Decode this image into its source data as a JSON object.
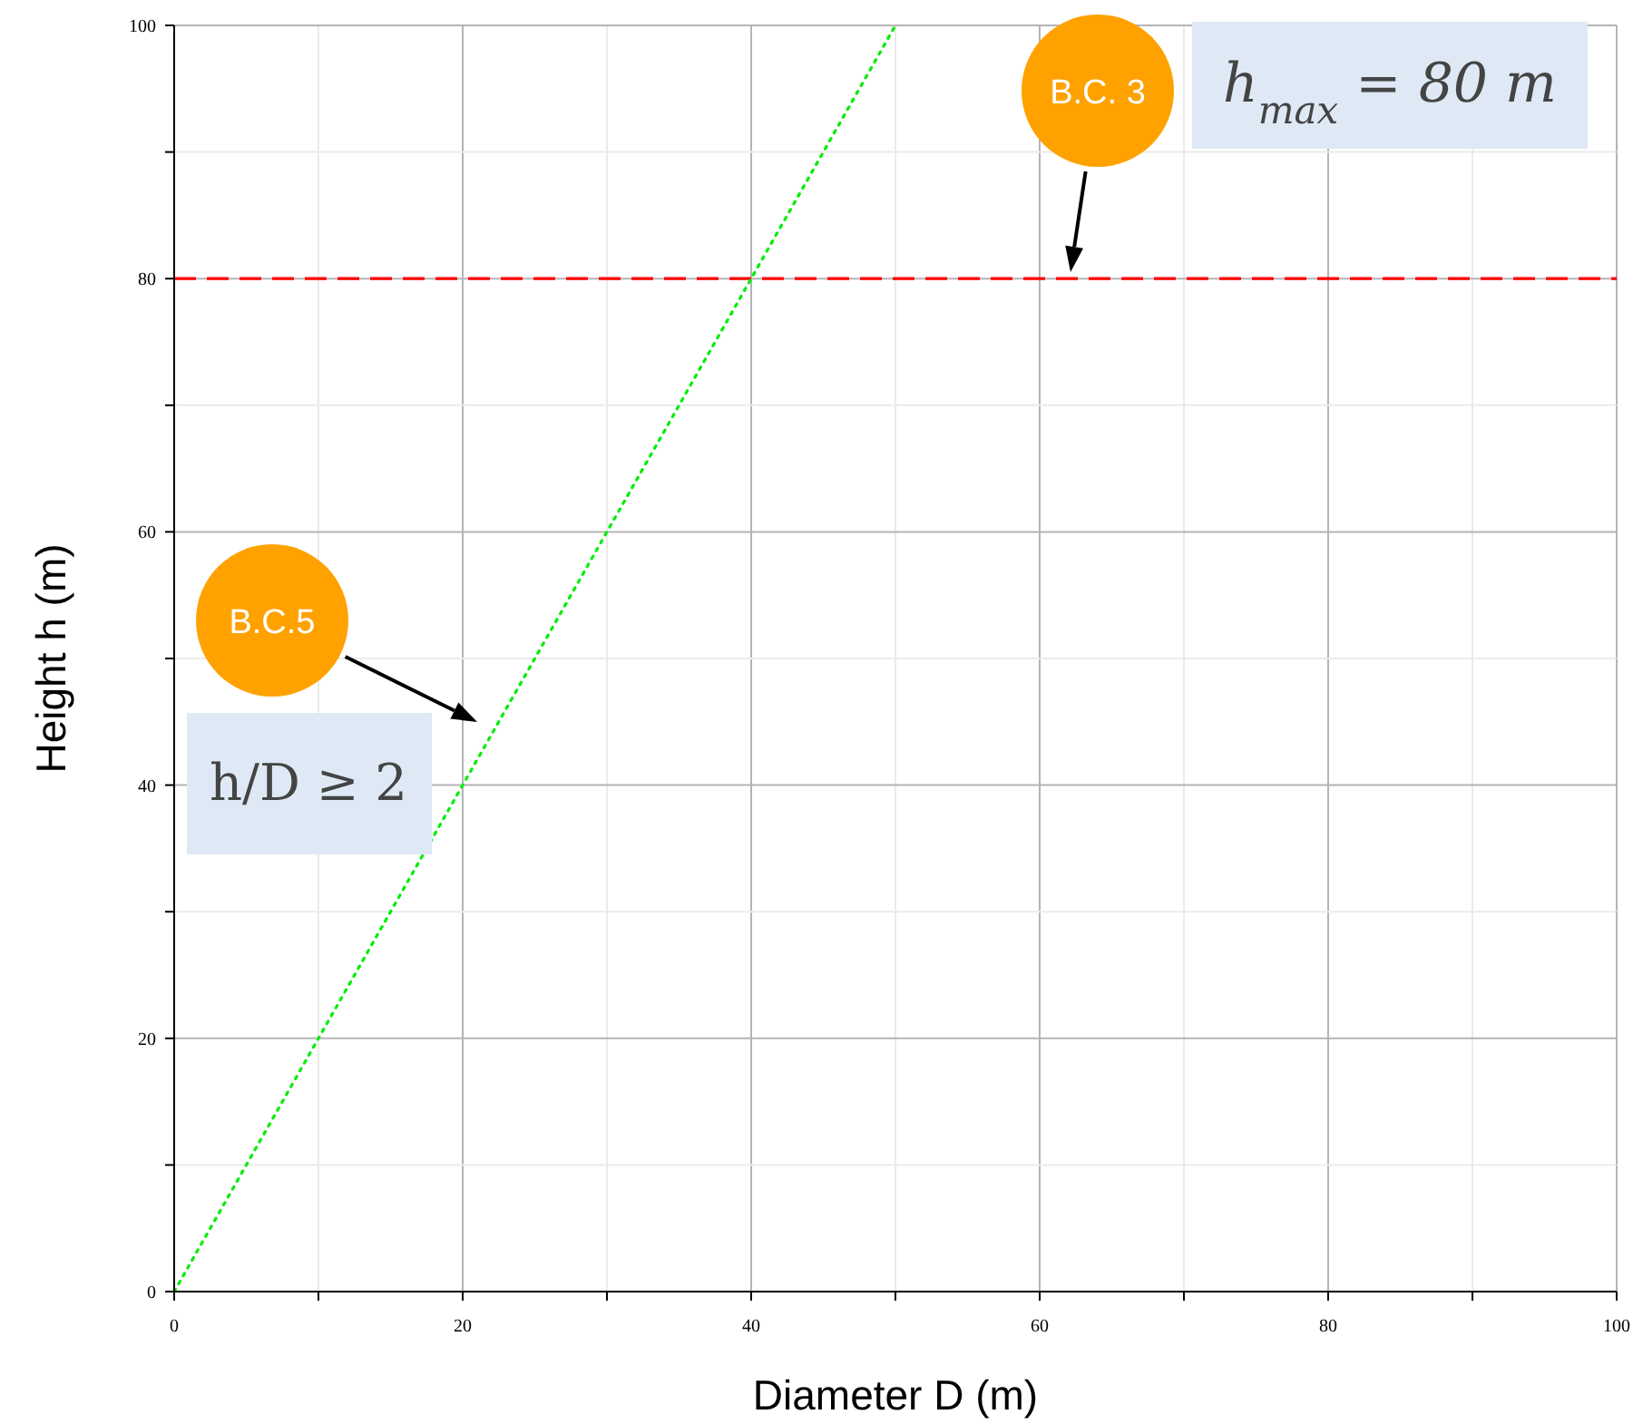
{
  "chart_data": {
    "type": "line",
    "xlabel": "Diameter D (m)",
    "ylabel": "Height h (m)",
    "x": [
      0,
      50
    ],
    "values": [
      0,
      100
    ],
    "color": "#00ee00",
    "line_style": "dotted",
    "xlim": [
      0,
      100
    ],
    "ylim": [
      0,
      100
    ],
    "xticks": [
      0,
      {
        "value": 10,
        "label": null
      },
      20,
      {
        "value": 30,
        "label": null
      },
      40,
      {
        "value": 50,
        "label": null
      },
      60,
      {
        "value": 70,
        "label": null
      },
      80,
      {
        "value": 90,
        "label": null
      },
      100
    ],
    "yticks": [
      0,
      {
        "value": 10,
        "label": null
      },
      20,
      {
        "value": 30,
        "label": null
      },
      40,
      {
        "value": 50,
        "label": null
      },
      60,
      {
        "value": 70,
        "label": null
      },
      80,
      {
        "value": 90,
        "label": null
      },
      100
    ],
    "grid": true,
    "ref_lines": [
      {
        "axis": "y",
        "value": 80,
        "label": "h$_{max}$ = 80 m",
        "color": "#ff0000",
        "line_style": "dashed"
      }
    ],
    "annotations": [
      "B.C. 3",
      "B.C.5",
      "h/D ≥ 2"
    ]
  }
}
